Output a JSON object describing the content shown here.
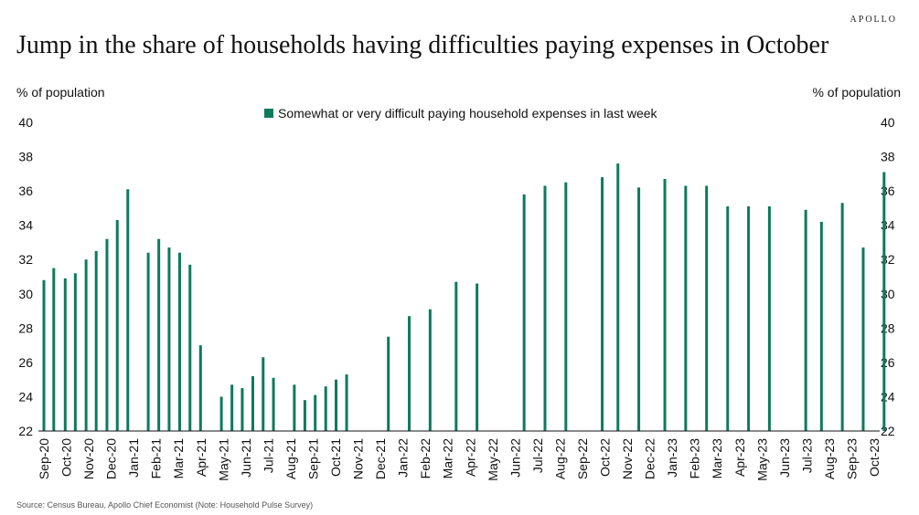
{
  "brand": "APOLLO",
  "title": "Jump in the share of  households having difficulties paying expenses in October",
  "source": "Source: Census Bureau, Apollo Chief Economist (Note: Household Pulse Survey)",
  "colors": {
    "bar": "#0e7a5c",
    "axis": "#111111"
  },
  "chart_data": {
    "type": "bar",
    "ylabel_left": "% of population",
    "ylabel_right": "% of population",
    "ylim": [
      22,
      40
    ],
    "yticks": [
      22,
      24,
      26,
      28,
      30,
      32,
      34,
      36,
      38,
      40
    ],
    "grid": false,
    "legend": {
      "label": "Somewhat or very difficult paying household expenses in last week",
      "position": "top-center"
    },
    "categories": [
      "Sep-20",
      "Oct-20",
      "Nov-20",
      "Dec-20",
      "Jan-21",
      "Feb-21",
      "Mar-21",
      "Apr-21",
      "May-21",
      "Jun-21",
      "Jul-21",
      "Aug-21",
      "Sep-21",
      "Oct-21",
      "Nov-21",
      "Dec-21",
      "Jan-22",
      "Feb-22",
      "Mar-22",
      "Apr-22",
      "May-22",
      "Jun-22",
      "Jul-22",
      "Aug-22",
      "Sep-22",
      "Oct-22",
      "Nov-22",
      "Dec-22",
      "Jan-23",
      "Feb-23",
      "Mar-23",
      "Apr-23",
      "May-23",
      "Jun-23",
      "Jul-23",
      "Aug-23",
      "Sep-23",
      "Oct-23"
    ],
    "series": [
      {
        "name": "Somewhat or very difficult paying household expenses in last week",
        "points": [
          {
            "x": 0.0,
            "y": 30.8
          },
          {
            "x": 0.44,
            "y": 31.5
          },
          {
            "x": 0.95,
            "y": 30.9
          },
          {
            "x": 1.4,
            "y": 31.2
          },
          {
            "x": 1.88,
            "y": 32.0
          },
          {
            "x": 2.33,
            "y": 32.5
          },
          {
            "x": 2.81,
            "y": 33.2
          },
          {
            "x": 3.27,
            "y": 34.3
          },
          {
            "x": 3.74,
            "y": 36.1
          },
          {
            "x": 4.65,
            "y": 32.4
          },
          {
            "x": 5.12,
            "y": 33.2
          },
          {
            "x": 5.58,
            "y": 32.7
          },
          {
            "x": 6.05,
            "y": 32.4
          },
          {
            "x": 6.51,
            "y": 31.7
          },
          {
            "x": 6.98,
            "y": 27.0
          },
          {
            "x": 7.91,
            "y": 24.0
          },
          {
            "x": 8.38,
            "y": 24.7
          },
          {
            "x": 8.84,
            "y": 24.5
          },
          {
            "x": 9.31,
            "y": 25.2
          },
          {
            "x": 9.77,
            "y": 26.3
          },
          {
            "x": 10.23,
            "y": 25.1
          },
          {
            "x": 11.16,
            "y": 24.7
          },
          {
            "x": 11.63,
            "y": 23.8
          },
          {
            "x": 12.09,
            "y": 24.1
          },
          {
            "x": 12.56,
            "y": 24.6
          },
          {
            "x": 13.02,
            "y": 25.0
          },
          {
            "x": 13.49,
            "y": 25.3
          },
          {
            "x": 15.35,
            "y": 27.5
          },
          {
            "x": 16.28,
            "y": 28.7
          },
          {
            "x": 17.21,
            "y": 29.1
          },
          {
            "x": 18.37,
            "y": 30.7
          },
          {
            "x": 19.3,
            "y": 30.6
          },
          {
            "x": 21.4,
            "y": 35.8
          },
          {
            "x": 22.33,
            "y": 36.3
          },
          {
            "x": 23.26,
            "y": 36.5
          },
          {
            "x": 24.88,
            "y": 36.8
          },
          {
            "x": 25.58,
            "y": 37.6
          },
          {
            "x": 26.51,
            "y": 36.2
          },
          {
            "x": 27.67,
            "y": 36.7
          },
          {
            "x": 28.6,
            "y": 36.3
          },
          {
            "x": 29.53,
            "y": 36.3
          },
          {
            "x": 30.47,
            "y": 35.1
          },
          {
            "x": 31.4,
            "y": 35.1
          },
          {
            "x": 32.33,
            "y": 35.1
          },
          {
            "x": 33.95,
            "y": 34.9
          },
          {
            "x": 34.65,
            "y": 34.2
          },
          {
            "x": 35.58,
            "y": 35.3
          },
          {
            "x": 36.51,
            "y": 32.7
          },
          {
            "x": 37.44,
            "y": 37.1
          }
        ]
      }
    ]
  }
}
